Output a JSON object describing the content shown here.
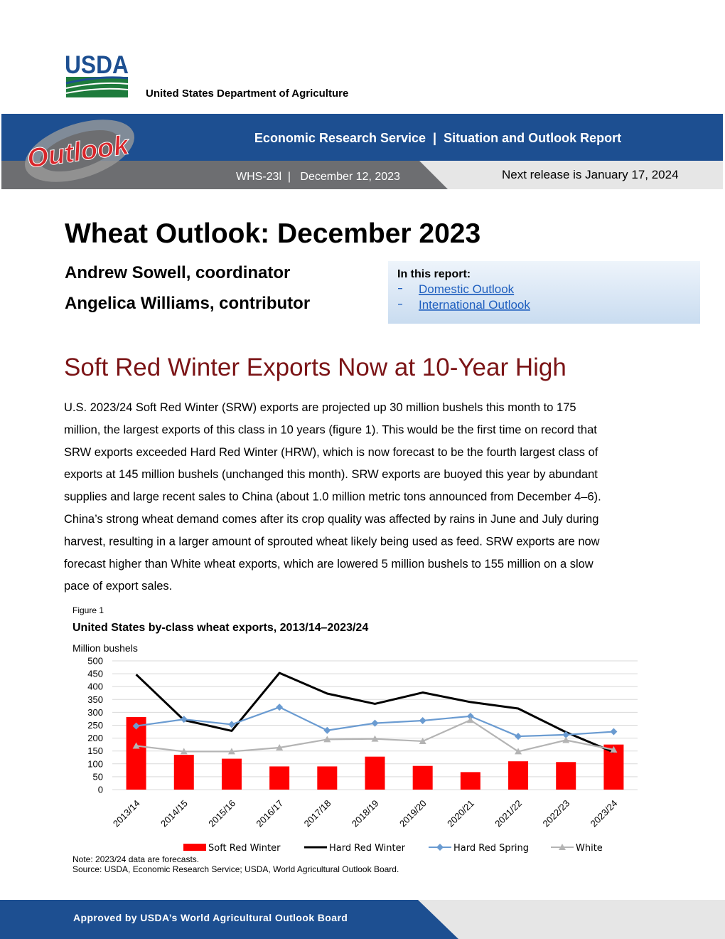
{
  "header": {
    "logo": "USDA",
    "agency": "United States Department of Agriculture",
    "banner": "Economic Research Service  |  Situation and Outlook Report",
    "brand": "Outlook",
    "report_id": "WHS-23l  |   December 12, 2023",
    "next_release": "Next release is January 17, 2024"
  },
  "title": "Wheat Outlook: December 2023",
  "authors": [
    "Andrew Sowell, coordinator",
    "Angelica Williams, contributor"
  ],
  "in_this_report": {
    "heading": "In this report:",
    "links": [
      "Domestic Outlook",
      "International Outlook"
    ]
  },
  "headline": "Soft Red Winter Exports Now at 10-Year High",
  "body": [
    "U.S. 2023/24 Soft Red Winter (SRW) exports are projected up 30 million bushels this month to 175",
    "million, the largest exports of this class in 10 years (figure 1). This would be the first time on record that",
    "SRW exports exceeded Hard Red Winter (HRW), which is now forecast to be the fourth largest class of",
    "exports at 145 million bushels (unchanged this month). SRW exports are buoyed this year by abundant",
    "supplies and large recent sales to China (about 1.0 million metric tons announced from December 4–6).",
    "China’s strong wheat demand comes after its crop quality was affected by rains in June and July during",
    "harvest, resulting in a larger amount of sprouted wheat likely being used as feed. SRW exports are now",
    "forecast higher than White wheat exports, which are lowered 5 million bushels to 155 million on a slow",
    "pace of export sales."
  ],
  "chart_data": {
    "type": "bar",
    "figure_label": "Figure 1",
    "title": "United States by-class wheat exports, 2013/14–2023/24",
    "y_label": "Million bushels",
    "categories": [
      "2013/14",
      "2014/15",
      "2015/16",
      "2016/17",
      "2017/18",
      "2018/19",
      "2019/20",
      "2020/21",
      "2021/22",
      "2022/23",
      "2023/24"
    ],
    "series": [
      {
        "name": "Soft Red Winter",
        "type": "bar",
        "color": "#ff0000",
        "values": [
          282,
          135,
          120,
          90,
          90,
          128,
          92,
          68,
          110,
          107,
          175
        ]
      },
      {
        "name": "Hard Red Winter",
        "type": "line",
        "color": "#000000",
        "marker": "none",
        "values": [
          447,
          270,
          228,
          453,
          373,
          333,
          377,
          340,
          315,
          223,
          145
        ]
      },
      {
        "name": "Hard Red Spring",
        "type": "line",
        "color": "#6a9bd1",
        "marker": "diamond",
        "values": [
          247,
          273,
          253,
          320,
          230,
          258,
          268,
          285,
          207,
          213,
          225
        ]
      },
      {
        "name": "White",
        "type": "line",
        "color": "#b4b4b4",
        "marker": "triangle",
        "values": [
          170,
          148,
          148,
          163,
          195,
          197,
          188,
          270,
          148,
          192,
          155
        ]
      }
    ],
    "ylim": [
      0,
      500
    ],
    "yticks": [
      0,
      50,
      100,
      150,
      200,
      250,
      300,
      350,
      400,
      450,
      500
    ],
    "grid": true,
    "legend": "bottom",
    "note": "Note: 2023/24 data are forecasts.",
    "source": "Source: USDA, Economic Research Service; USDA, World Agricultural Outlook Board."
  },
  "footer": "Approved by USDA’s World Agricultural Outlook Board"
}
